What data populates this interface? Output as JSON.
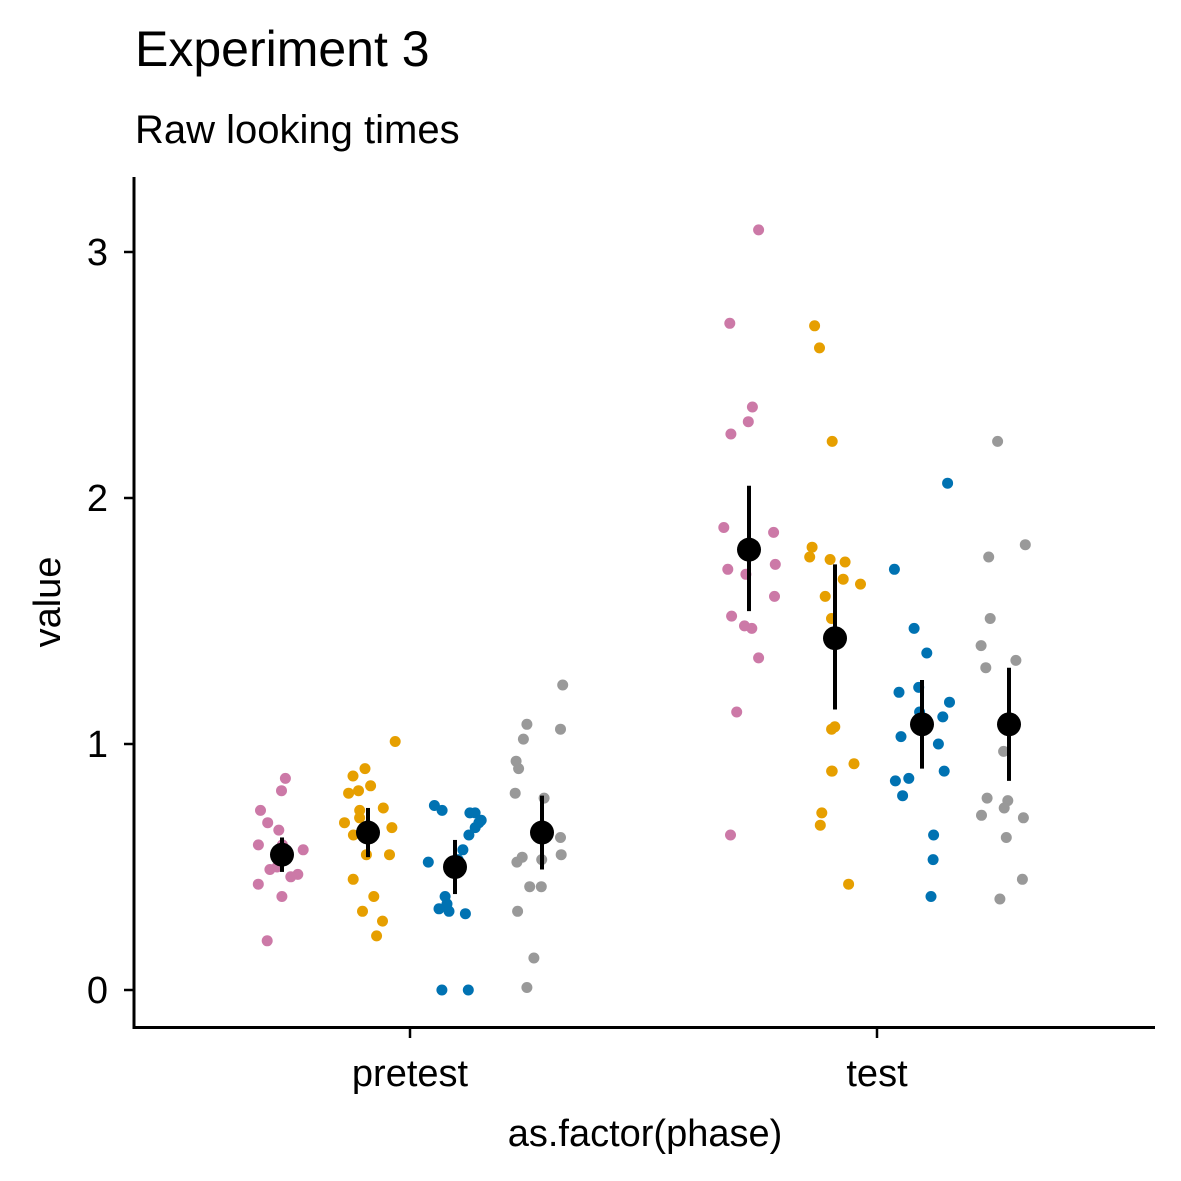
{
  "chart_data": {
    "type": "scatter",
    "title": "Experiment 3",
    "subtitle": "Raw looking times",
    "xlabel": "as.factor(phase)",
    "ylabel": "value",
    "categories": [
      "pretest",
      "test"
    ],
    "ylim": [
      -0.15,
      3.3
    ],
    "yticks": [
      0,
      1,
      2,
      3
    ],
    "grid": false,
    "legend": "none",
    "groups": [
      {
        "color": "#CC79A7",
        "pretest": {
          "mean": 0.55,
          "ci": [
            0.48,
            0.62
          ],
          "points": [
            0.81,
            0.86,
            0.73,
            0.68,
            0.65,
            0.59,
            0.59,
            0.57,
            0.54,
            0.5,
            0.49,
            0.47,
            0.46,
            0.43,
            0.38,
            0.2
          ]
        },
        "test": {
          "mean": 1.79,
          "ci": [
            1.54,
            2.05
          ],
          "points": [
            3.09,
            2.71,
            2.37,
            2.31,
            2.26,
            1.88,
            1.86,
            1.73,
            1.71,
            1.69,
            1.6,
            1.52,
            1.48,
            1.47,
            1.35,
            1.13,
            0.63
          ]
        }
      },
      {
        "color": "#E69F00",
        "pretest": {
          "mean": 0.64,
          "ci": [
            0.54,
            0.74
          ],
          "points": [
            1.01,
            0.9,
            0.87,
            0.83,
            0.81,
            0.8,
            0.74,
            0.73,
            0.7,
            0.68,
            0.66,
            0.63,
            0.55,
            0.55,
            0.45,
            0.38,
            0.32,
            0.28,
            0.22
          ]
        },
        "test": {
          "mean": 1.43,
          "ci": [
            1.14,
            1.73
          ],
          "points": [
            2.7,
            2.61,
            2.23,
            1.8,
            1.76,
            1.75,
            1.74,
            1.67,
            1.65,
            1.6,
            1.51,
            1.07,
            1.06,
            0.92,
            0.89,
            0.89,
            0.72,
            0.67,
            0.43
          ]
        }
      },
      {
        "color": "#0072B2",
        "pretest": {
          "mean": 0.5,
          "ci": [
            0.39,
            0.61
          ],
          "points": [
            0.75,
            0.73,
            0.72,
            0.72,
            0.69,
            0.68,
            0.66,
            0.63,
            0.57,
            0.53,
            0.52,
            0.38,
            0.35,
            0.33,
            0.32,
            0.31,
            0.0,
            0.0
          ]
        },
        "test": {
          "mean": 1.08,
          "ci": [
            0.9,
            1.26
          ],
          "points": [
            2.06,
            1.71,
            1.47,
            1.37,
            1.23,
            1.21,
            1.17,
            1.13,
            1.11,
            1.07,
            1.06,
            1.03,
            1.0,
            0.89,
            0.86,
            0.85,
            0.79,
            0.63,
            0.53,
            0.38
          ]
        }
      },
      {
        "color": "#999999",
        "pretest": {
          "mean": 0.64,
          "ci": [
            0.49,
            0.79
          ],
          "points": [
            1.24,
            1.08,
            1.06,
            1.02,
            0.93,
            0.9,
            0.8,
            0.78,
            0.62,
            0.55,
            0.54,
            0.53,
            0.52,
            0.42,
            0.42,
            0.32,
            0.13,
            0.01
          ]
        },
        "test": {
          "mean": 1.08,
          "ci": [
            0.85,
            1.31
          ],
          "points": [
            2.23,
            1.81,
            1.76,
            1.51,
            1.4,
            1.34,
            1.31,
            0.97,
            0.78,
            0.77,
            0.74,
            0.71,
            0.7,
            0.62,
            0.45,
            0.37
          ]
        }
      }
    ]
  }
}
